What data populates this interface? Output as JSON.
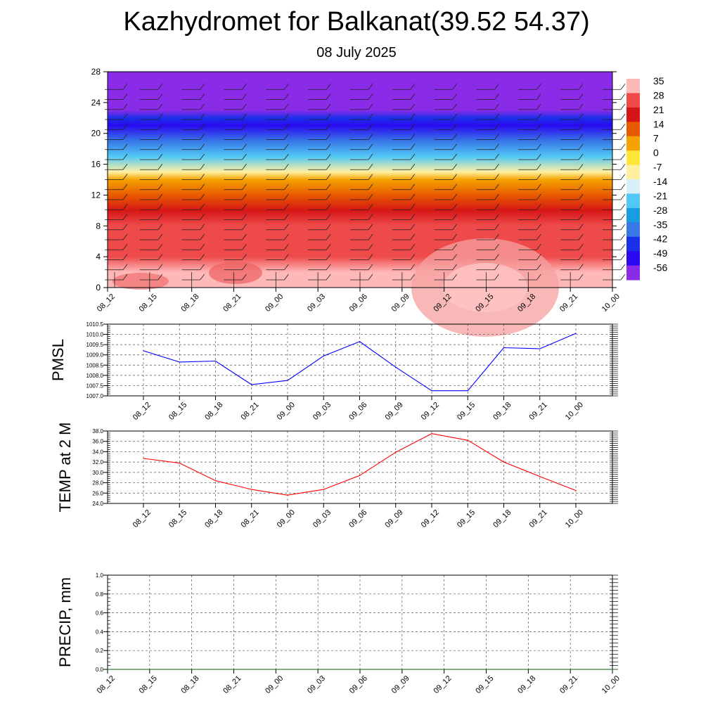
{
  "header": {
    "title": "Kazhydromet for Balkanat(39.52 54.37)",
    "subtitle": "08 July 2025"
  },
  "chart_data": [
    {
      "type": "heatmap",
      "name": "temperature-wind-cross-section",
      "x_ticks": [
        "08_12",
        "08_15",
        "08_18",
        "08_21",
        "09_00",
        "09_03",
        "09_06",
        "09_09",
        "09_12",
        "09_15",
        "09_18",
        "09_21",
        "10_00"
      ],
      "y_ticks": [
        0,
        4,
        8,
        12,
        16,
        20,
        24,
        28
      ],
      "ylim": [
        0,
        28
      ],
      "colorbar": {
        "labels": [
          "35",
          "28",
          "21",
          "14",
          "7",
          "0",
          "-7",
          "-14",
          "-21",
          "-28",
          "-35",
          "-42",
          "-49",
          "-56"
        ],
        "colors": [
          "#ffb8b8",
          "#ee4a4a",
          "#d61616",
          "#e85a00",
          "#f5a300",
          "#ffe43a",
          "#fff0a0",
          "#d8eef8",
          "#52c8f5",
          "#1a9de0",
          "#3877e8",
          "#1a2fe8",
          "#2a0af0",
          "#8a2be8"
        ]
      },
      "temperature_profile_by_height": [
        {
          "z": 0,
          "t": 35
        },
        {
          "z": 2,
          "t": 31
        },
        {
          "z": 4,
          "t": 27
        },
        {
          "z": 6,
          "t": 24
        },
        {
          "z": 8,
          "t": 21
        },
        {
          "z": 10,
          "t": 14
        },
        {
          "z": 12,
          "t": 7
        },
        {
          "z": 14,
          "t": 0
        },
        {
          "z": 15,
          "t": -14
        },
        {
          "z": 17,
          "t": -28
        },
        {
          "z": 19,
          "t": -42
        },
        {
          "z": 21,
          "t": -56
        },
        {
          "z": 22,
          "t": -49
        },
        {
          "z": 23,
          "t": -60
        },
        {
          "z": 28,
          "t": -60
        }
      ],
      "wind_barbs": true
    },
    {
      "type": "line",
      "name": "pmsl",
      "ylabel": "PMSL",
      "x": [
        "08_12",
        "08_15",
        "08_18",
        "08_21",
        "09_00",
        "09_03",
        "09_06",
        "09_09",
        "09_12",
        "09_15",
        "09_18",
        "09_21",
        "10_00"
      ],
      "values": [
        1009.2,
        1008.65,
        1008.7,
        1007.55,
        1007.75,
        1008.95,
        1009.65,
        1008.4,
        1007.25,
        1007.25,
        1009.35,
        1009.3,
        1010.05
      ],
      "ylim": [
        1007.0,
        1010.5
      ],
      "y_ticks": [
        "1007.0",
        "1007.5",
        "1008.0",
        "1008.5",
        "1009.0",
        "1009.5",
        "1010.0",
        "1010.5"
      ],
      "color": "#0000ff",
      "grid": true
    },
    {
      "type": "line",
      "name": "temp-2m",
      "ylabel": "TEMP at 2 M",
      "x": [
        "08_12",
        "08_15",
        "08_18",
        "08_21",
        "09_00",
        "09_03",
        "09_06",
        "09_09",
        "09_12",
        "09_15",
        "09_18",
        "09_21",
        "10_00"
      ],
      "values": [
        32.7,
        31.8,
        28.4,
        26.7,
        25.6,
        26.7,
        29.4,
        33.9,
        37.5,
        36.2,
        32.0,
        29.2,
        26.5
      ],
      "ylim": [
        24.0,
        38.0
      ],
      "y_ticks": [
        "24.0",
        "26.0",
        "28.0",
        "30.0",
        "32.0",
        "34.0",
        "36.0",
        "38.0"
      ],
      "color": "#ff0000",
      "grid": true
    },
    {
      "type": "line",
      "name": "precip",
      "ylabel": "PRECIP, mm",
      "x": [
        "08_12",
        "08_15",
        "08_18",
        "08_21",
        "09_00",
        "09_03",
        "09_06",
        "09_09",
        "09_12",
        "09_15",
        "09_18",
        "09_21",
        "10_00"
      ],
      "values": [
        0,
        0,
        0,
        0,
        0,
        0,
        0,
        0,
        0,
        0,
        0,
        0,
        0
      ],
      "ylim": [
        0.0,
        1.0
      ],
      "y_ticks": [
        "0.0",
        "0.2",
        "0.4",
        "0.6",
        "0.8",
        "1.0"
      ],
      "color": "#006400",
      "grid": true
    }
  ]
}
